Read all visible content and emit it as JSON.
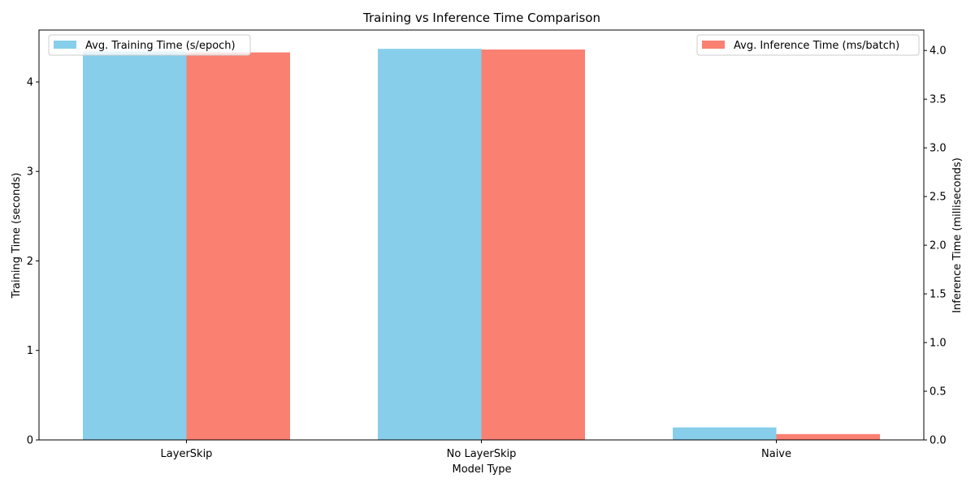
{
  "chart_data": {
    "type": "bar",
    "title": "Training vs Inference Time Comparison",
    "xlabel": "Model Type",
    "ylabel": "Training Time (seconds)",
    "y2label": "Inference Time (milliseconds)",
    "categories": [
      "LayerSkip",
      "No LayerSkip",
      "Naive"
    ],
    "series": [
      {
        "name": "Avg. Training Time (s/epoch)",
        "axis": "left",
        "color": "#87CEEB",
        "values": [
          4.34,
          4.37,
          0.14
        ]
      },
      {
        "name": "Avg. Inference Time (ms/batch)",
        "axis": "right",
        "color": "#FA8072",
        "values": [
          3.98,
          4.01,
          0.06
        ]
      }
    ],
    "ylim": [
      0,
      4.58
    ],
    "y2lim": [
      0,
      4.21
    ],
    "yticks": [
      "0",
      "1",
      "2",
      "3",
      "4"
    ],
    "y2ticks": [
      "0.0",
      "0.5",
      "1.0",
      "1.5",
      "2.0",
      "2.5",
      "3.0",
      "3.5",
      "4.0"
    ],
    "legend": {
      "series0": "top-left",
      "series1": "top-right"
    },
    "grid": false
  }
}
